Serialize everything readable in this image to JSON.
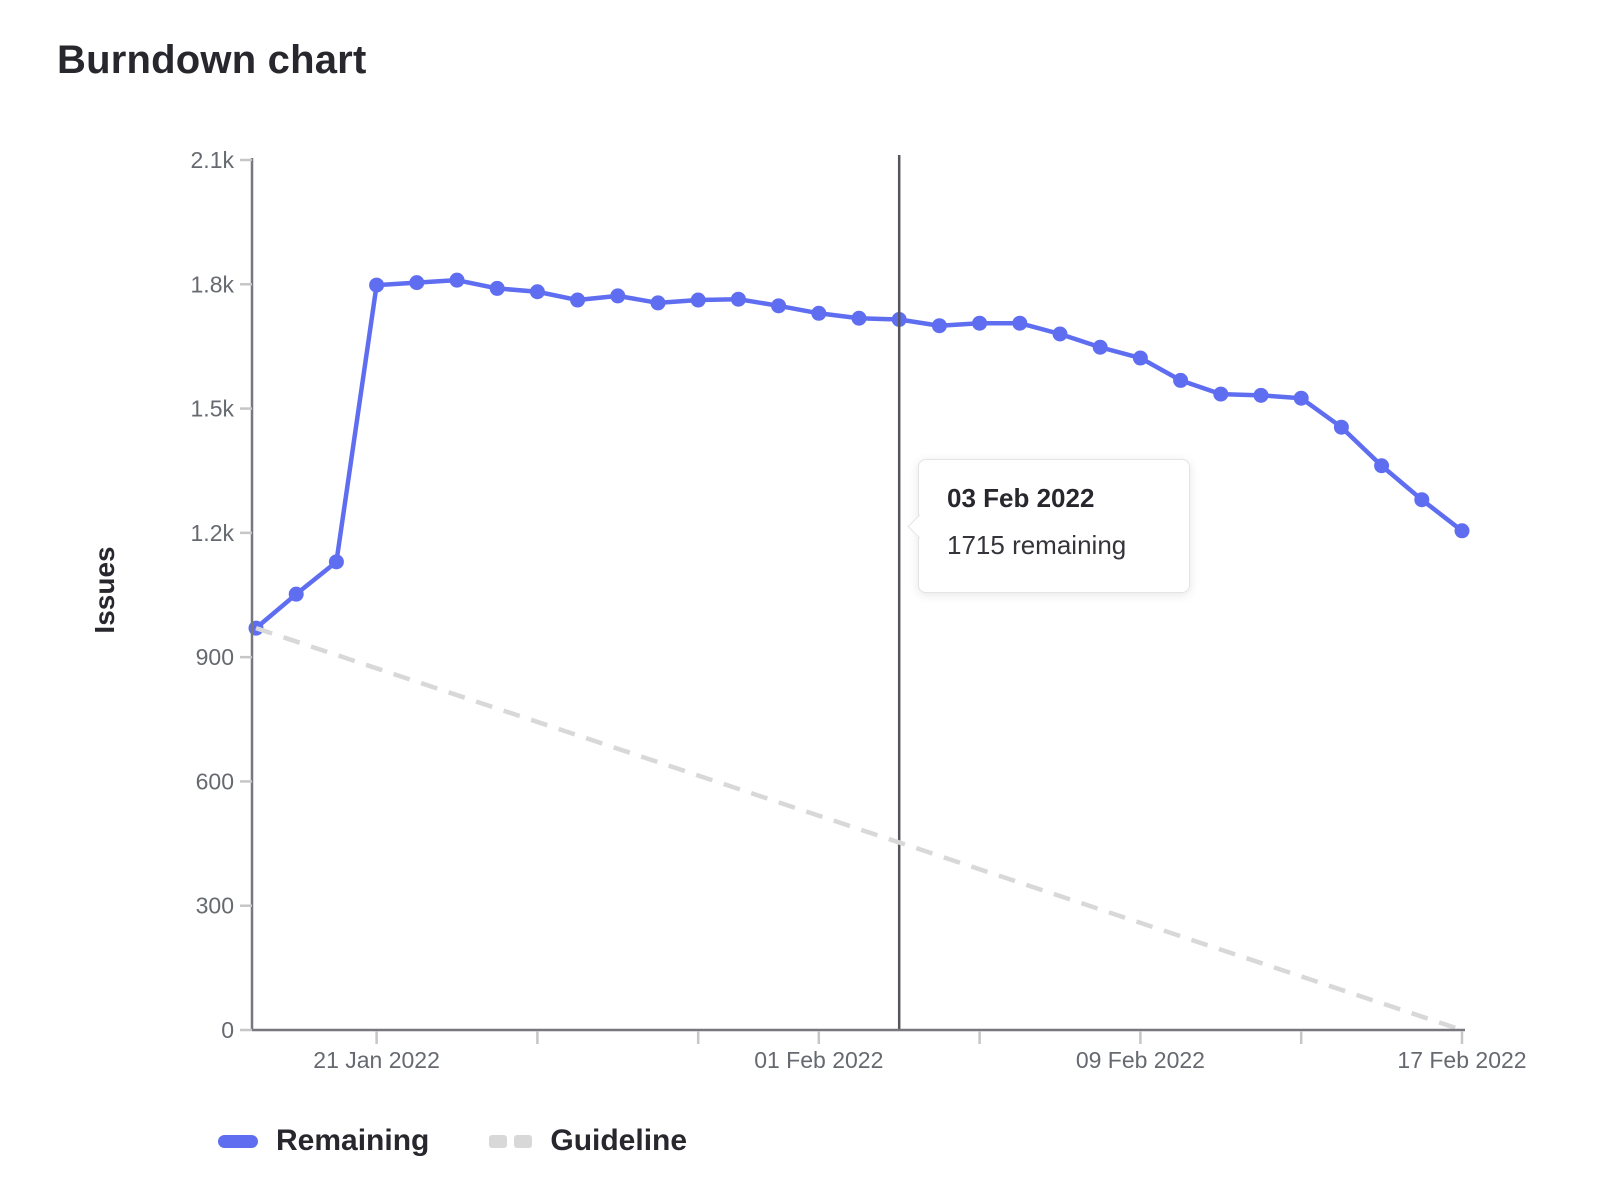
{
  "title": "Burndown chart",
  "y_axis_label": "Issues",
  "legend": {
    "remaining": "Remaining",
    "guideline": "Guideline"
  },
  "tooltip": {
    "title": "03 Feb 2022",
    "body": "1715 remaining"
  },
  "colors": {
    "remaining": "#5f6ef0",
    "guideline": "#d8d8d8",
    "axis": "#77777d",
    "tick_mark": "#c6c6c6",
    "tick_text": "#666a70",
    "today_line": "#54565b",
    "text_dark": "#28272d"
  },
  "chart_data": {
    "type": "line",
    "title": "Burndown chart",
    "xlabel": "",
    "ylabel": "Issues",
    "ylim": [
      0,
      2100
    ],
    "grid": false,
    "legend_position": "bottom-left",
    "y_ticks": [
      {
        "value": 0,
        "label": "0"
      },
      {
        "value": 300,
        "label": "300"
      },
      {
        "value": 600,
        "label": "600"
      },
      {
        "value": 900,
        "label": "900"
      },
      {
        "value": 1200,
        "label": "1.2k"
      },
      {
        "value": 1500,
        "label": "1.5k"
      },
      {
        "value": 1800,
        "label": "1.8k"
      },
      {
        "value": 2100,
        "label": "2.1k"
      }
    ],
    "x_ticks": [
      {
        "day_index": 3,
        "label": "21 Jan 2022"
      },
      {
        "day_index": 7,
        "label": ""
      },
      {
        "day_index": 11,
        "label": ""
      },
      {
        "day_index": 14,
        "label": "01 Feb 2022"
      },
      {
        "day_index": 18,
        "label": ""
      },
      {
        "day_index": 22,
        "label": "09 Feb 2022"
      },
      {
        "day_index": 26,
        "label": ""
      },
      {
        "day_index": 30,
        "label": "17 Feb 2022"
      }
    ],
    "today_marker": {
      "date": "03 Feb 2022",
      "day_index": 16,
      "value": 1715
    },
    "series": [
      {
        "name": "Remaining",
        "style": "solid",
        "color": "#5f6ef0",
        "points": [
          {
            "date": "18 Jan 2022",
            "value": 970
          },
          {
            "date": "19 Jan 2022",
            "value": 1052
          },
          {
            "date": "20 Jan 2022",
            "value": 1130
          },
          {
            "date": "21 Jan 2022",
            "value": 1798
          },
          {
            "date": "22 Jan 2022",
            "value": 1804
          },
          {
            "date": "23 Jan 2022",
            "value": 1810
          },
          {
            "date": "24 Jan 2022",
            "value": 1790
          },
          {
            "date": "25 Jan 2022",
            "value": 1782
          },
          {
            "date": "26 Jan 2022",
            "value": 1762
          },
          {
            "date": "27 Jan 2022",
            "value": 1772
          },
          {
            "date": "28 Jan 2022",
            "value": 1755
          },
          {
            "date": "29 Jan 2022",
            "value": 1762
          },
          {
            "date": "30 Jan 2022",
            "value": 1764
          },
          {
            "date": "31 Jan 2022",
            "value": 1748
          },
          {
            "date": "01 Feb 2022",
            "value": 1730
          },
          {
            "date": "02 Feb 2022",
            "value": 1718
          },
          {
            "date": "03 Feb 2022",
            "value": 1715
          },
          {
            "date": "04 Feb 2022",
            "value": 1700
          },
          {
            "date": "05 Feb 2022",
            "value": 1706
          },
          {
            "date": "06 Feb 2022",
            "value": 1706
          },
          {
            "date": "07 Feb 2022",
            "value": 1680
          },
          {
            "date": "08 Feb 2022",
            "value": 1648
          },
          {
            "date": "09 Feb 2022",
            "value": 1622
          },
          {
            "date": "10 Feb 2022",
            "value": 1568
          },
          {
            "date": "11 Feb 2022",
            "value": 1535
          },
          {
            "date": "12 Feb 2022",
            "value": 1532
          },
          {
            "date": "13 Feb 2022",
            "value": 1525
          },
          {
            "date": "14 Feb 2022",
            "value": 1455
          },
          {
            "date": "15 Feb 2022",
            "value": 1362
          },
          {
            "date": "16 Feb 2022",
            "value": 1280
          },
          {
            "date": "17 Feb 2022",
            "value": 1205
          }
        ]
      },
      {
        "name": "Guideline",
        "style": "dashed",
        "color": "#d8d8d8",
        "points": [
          {
            "date": "18 Jan 2022",
            "value": 970
          },
          {
            "date": "17 Feb 2022",
            "value": 0
          }
        ]
      }
    ]
  }
}
